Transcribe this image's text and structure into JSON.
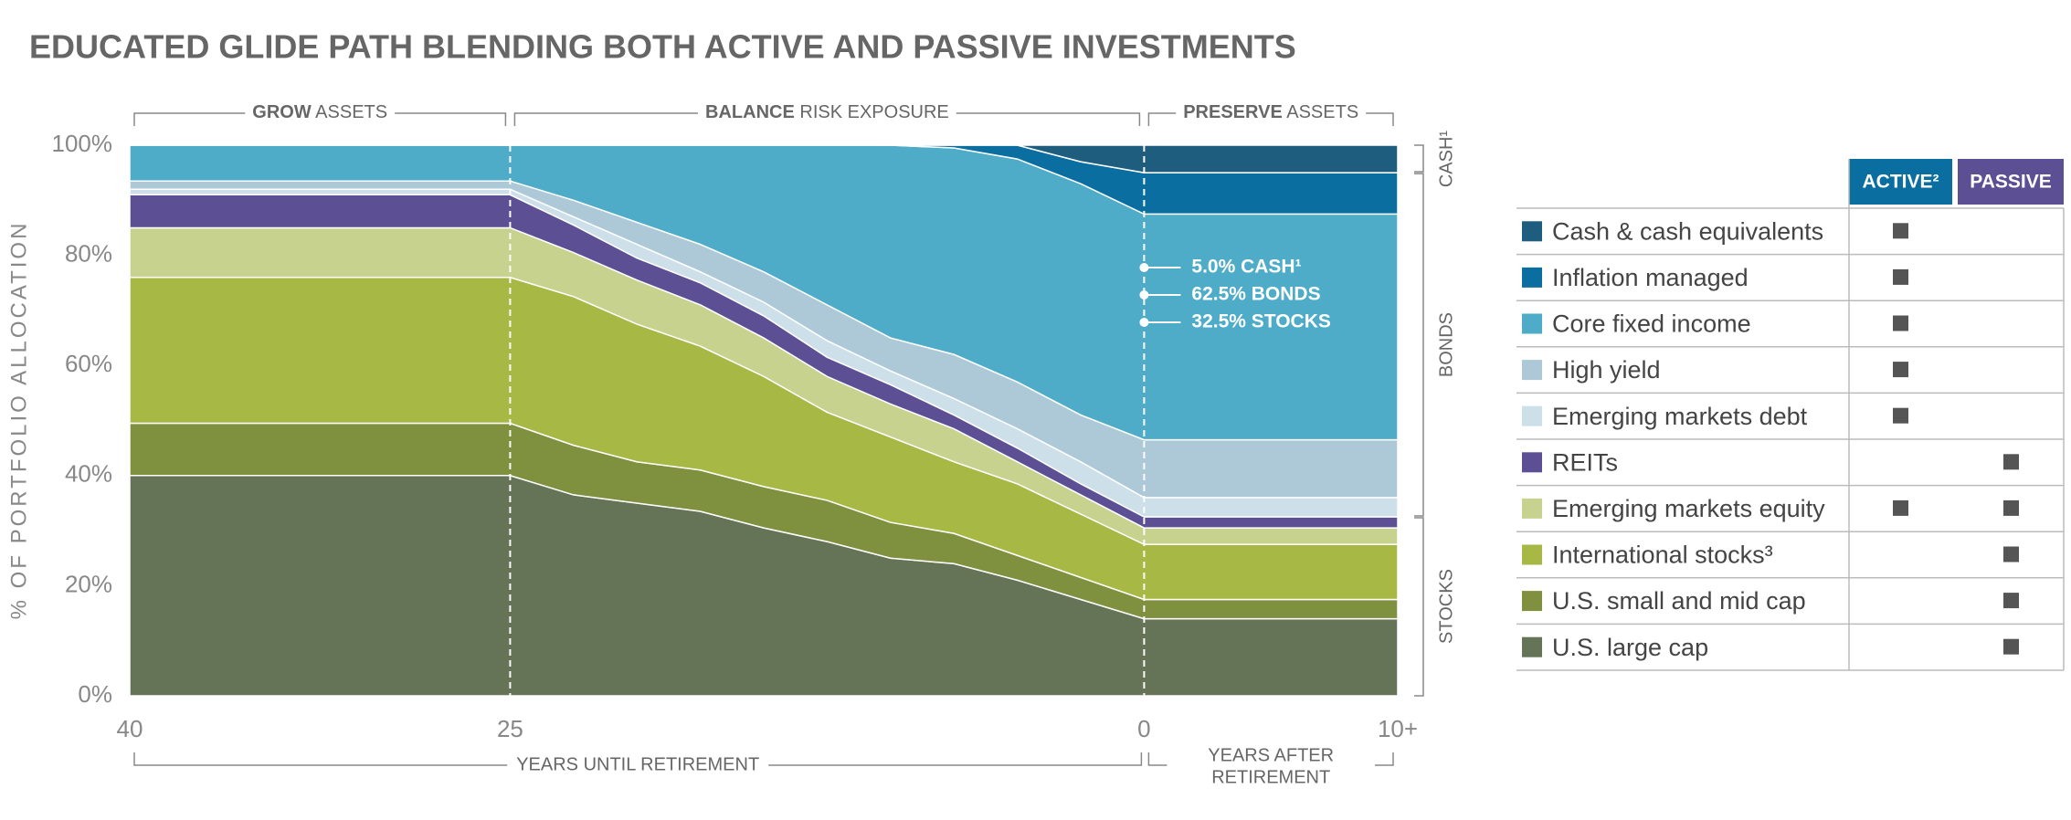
{
  "chart_data": {
    "type": "area",
    "stacked": true,
    "title": "EDUCATED GLIDE PATH BLENDING BOTH ACTIVE AND PASSIVE INVESTMENTS",
    "y_label": "% OF PORTFOLIO ALLOCATION",
    "x": [
      -40,
      -25,
      -22.5,
      -20,
      -17.5,
      -15,
      -12.5,
      -10,
      -7.5,
      -5,
      -2.5,
      0,
      10
    ],
    "xlim": [
      -40,
      10
    ],
    "xticks": [
      {
        "value": -40,
        "label": "40"
      },
      {
        "value": -25,
        "label": "25"
      },
      0,
      {
        "value": 10,
        "label": "10+"
      }
    ],
    "ylim": [
      0,
      100
    ],
    "yticks": [
      {
        "value": 0,
        "label": "0%"
      },
      {
        "value": 20,
        "label": "20%"
      },
      {
        "value": 40,
        "label": "40%"
      },
      {
        "value": 60,
        "label": "60%"
      },
      {
        "value": 80,
        "label": "80%"
      },
      {
        "value": 100,
        "label": "100%"
      }
    ],
    "phases": [
      {
        "bold": "GROW",
        "rest": "ASSETS"
      },
      {
        "bold": "BALANCE",
        "rest": "RISK EXPOSURE"
      },
      {
        "bold": "PRESERVE",
        "rest": "ASSETS"
      }
    ],
    "x_label": "YEARS UNTIL RETIREMENT",
    "x2_label": [
      "YEARS AFTER",
      "RETIREMENT"
    ],
    "group_labels": [
      "CASH¹",
      "BONDS",
      "STOCKS"
    ],
    "annotations": [
      "5.0% CASH¹",
      "62.5% BONDS",
      "32.5% STOCKS"
    ],
    "legend_columns": [
      {
        "name": "ACTIVE²",
        "color": "#0a6fa0"
      },
      {
        "name": "PASSIVE",
        "color": "#5c4f93"
      }
    ],
    "series": [
      {
        "name": "U.S. large cap",
        "color": "#657357",
        "active": false,
        "passive": true,
        "values": [
          40,
          40,
          36.5,
          35,
          33.5,
          30.5,
          28,
          25,
          24,
          21,
          17.5,
          14,
          14
        ]
      },
      {
        "name": "U.S. small and mid cap",
        "color": "#7f913f",
        "active": false,
        "passive": true,
        "values": [
          9.5,
          9.5,
          9,
          7.5,
          7.5,
          7.5,
          7.5,
          6.5,
          5.5,
          4.5,
          4,
          3.5,
          3.5
        ]
      },
      {
        "name": "International stocks³",
        "color": "#a7b844",
        "active": false,
        "passive": true,
        "values": [
          26.5,
          26.5,
          27,
          25,
          22.5,
          20,
          16,
          15.5,
          13,
          13,
          11.5,
          10,
          10
        ]
      },
      {
        "name": "Emerging markets equity",
        "color": "#c8d28f",
        "active": true,
        "passive": true,
        "values": [
          9,
          9,
          8,
          8,
          7.5,
          7,
          6.5,
          6,
          6,
          4,
          3.5,
          3,
          3
        ]
      },
      {
        "name": "REITs",
        "color": "#5c4f93",
        "active": false,
        "passive": true,
        "values": [
          6,
          6,
          5,
          4,
          4,
          4,
          3.5,
          3.5,
          2.5,
          2.5,
          2,
          2,
          2
        ]
      },
      {
        "name": "Emerging markets debt",
        "color": "#cde0ea",
        "active": true,
        "passive": false,
        "values": [
          1,
          1,
          1.5,
          2.5,
          2,
          2.5,
          3,
          2.5,
          3,
          3.5,
          4,
          3.5,
          3.5
        ]
      },
      {
        "name": "High yield",
        "color": "#adc9d8",
        "active": true,
        "passive": false,
        "values": [
          1.5,
          1.5,
          3,
          4,
          5,
          5.5,
          6.5,
          6,
          8,
          8.5,
          8.5,
          10.5,
          10.5
        ]
      },
      {
        "name": "Core fixed income",
        "color": "#4eacc8",
        "active": true,
        "passive": false,
        "values": [
          6.5,
          6.5,
          10,
          14,
          18,
          23,
          29,
          35,
          37.5,
          40.5,
          42,
          41,
          41
        ]
      },
      {
        "name": "Inflation managed",
        "color": "#0a6fa0",
        "active": true,
        "passive": false,
        "values": [
          0,
          0,
          0,
          0,
          0,
          0,
          0,
          0,
          0.5,
          2.5,
          4,
          7.5,
          7.5
        ]
      },
      {
        "name": "Cash & cash equivalents",
        "color": "#1f5d7e",
        "active": true,
        "passive": false,
        "values": [
          0,
          0,
          0,
          0,
          0,
          0,
          0,
          0,
          0,
          0,
          3,
          5,
          5
        ]
      }
    ]
  }
}
